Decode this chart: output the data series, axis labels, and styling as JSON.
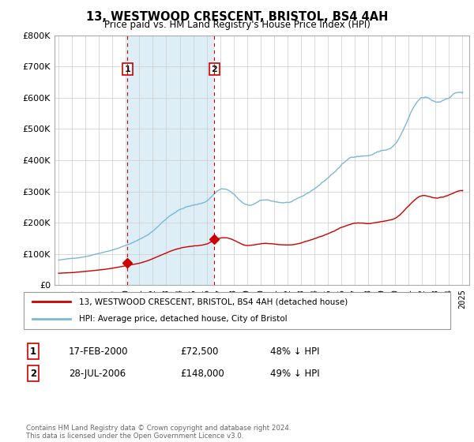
{
  "title": "13, WESTWOOD CRESCENT, BRISTOL, BS4 4AH",
  "subtitle": "Price paid vs. HM Land Registry's House Price Index (HPI)",
  "legend_entry1": "13, WESTWOOD CRESCENT, BRISTOL, BS4 4AH (detached house)",
  "legend_entry2": "HPI: Average price, detached house, City of Bristol",
  "transaction1_date": "17-FEB-2000",
  "transaction1_price": "£72,500",
  "transaction1_hpi": "48% ↓ HPI",
  "transaction2_date": "28-JUL-2006",
  "transaction2_price": "£148,000",
  "transaction2_hpi": "49% ↓ HPI",
  "footnote": "Contains HM Land Registry data © Crown copyright and database right 2024.\nThis data is licensed under the Open Government Licence v3.0.",
  "hpi_color": "#7ab8d8",
  "price_color": "#cc0000",
  "vline_color": "#cc0000",
  "shade_color": "#ddeef7",
  "ylim_min": 0,
  "ylim_max": 800000,
  "yticks": [
    0,
    100000,
    200000,
    300000,
    400000,
    500000,
    600000,
    700000,
    800000
  ],
  "transaction1_x": 2000.12,
  "transaction1_y": 72500,
  "transaction2_x": 2006.565,
  "transaction2_y": 148000,
  "xlim_min": 1994.7,
  "xlim_max": 2025.5
}
